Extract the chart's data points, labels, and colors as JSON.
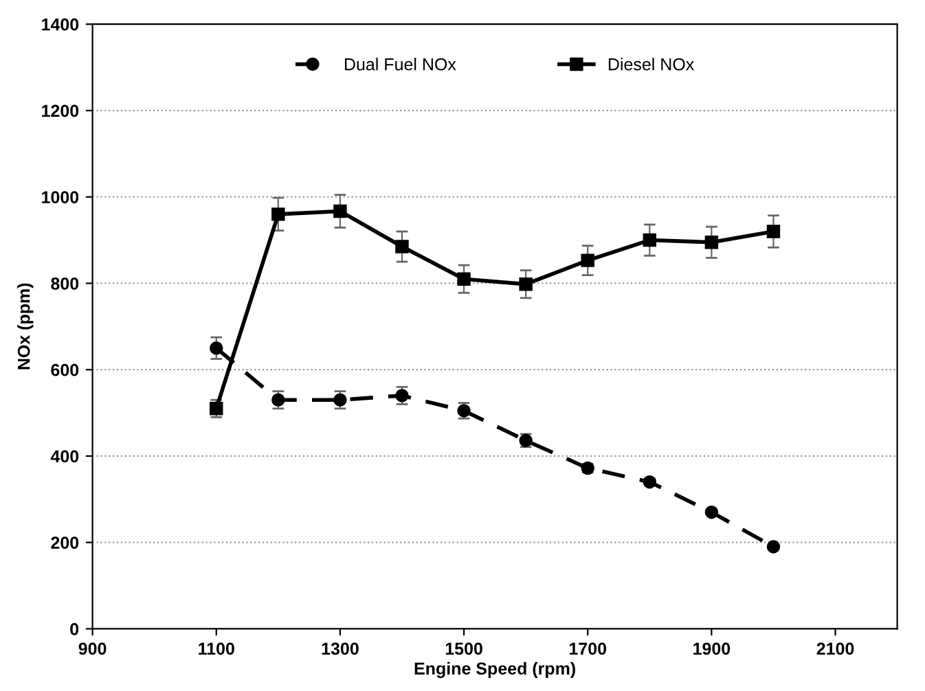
{
  "chart_data": {
    "type": "line",
    "xlabel": "Engine Speed (rpm)",
    "ylabel": "NOx (ppm)",
    "x": [
      1100,
      1200,
      1300,
      1400,
      1500,
      1600,
      1700,
      1800,
      1900,
      2000
    ],
    "series": [
      {
        "name": "Dual Fuel NOx",
        "color": "#000000",
        "marker": "circle",
        "line_style": "dashed",
        "values": [
          650,
          530,
          530,
          540,
          505,
          436,
          372,
          340,
          270,
          190
        ],
        "errors": [
          25,
          20,
          20,
          20,
          18,
          15,
          10,
          8,
          6,
          5
        ]
      },
      {
        "name": "Diesel NOx",
        "color": "#000000",
        "marker": "square",
        "line_style": "solid",
        "values": [
          510,
          960,
          967,
          885,
          810,
          798,
          853,
          900,
          895,
          920
        ],
        "errors": [
          20,
          38,
          38,
          35,
          32,
          32,
          34,
          36,
          36,
          37
        ]
      }
    ],
    "xlim": [
      900,
      2200
    ],
    "xticks": [
      900,
      1100,
      1300,
      1500,
      1700,
      1900,
      2100
    ],
    "ylim": [
      0,
      1400
    ],
    "yticks": [
      0,
      200,
      400,
      600,
      800,
      1000,
      1200,
      1400
    ],
    "grid": "y",
    "legend": "top"
  }
}
